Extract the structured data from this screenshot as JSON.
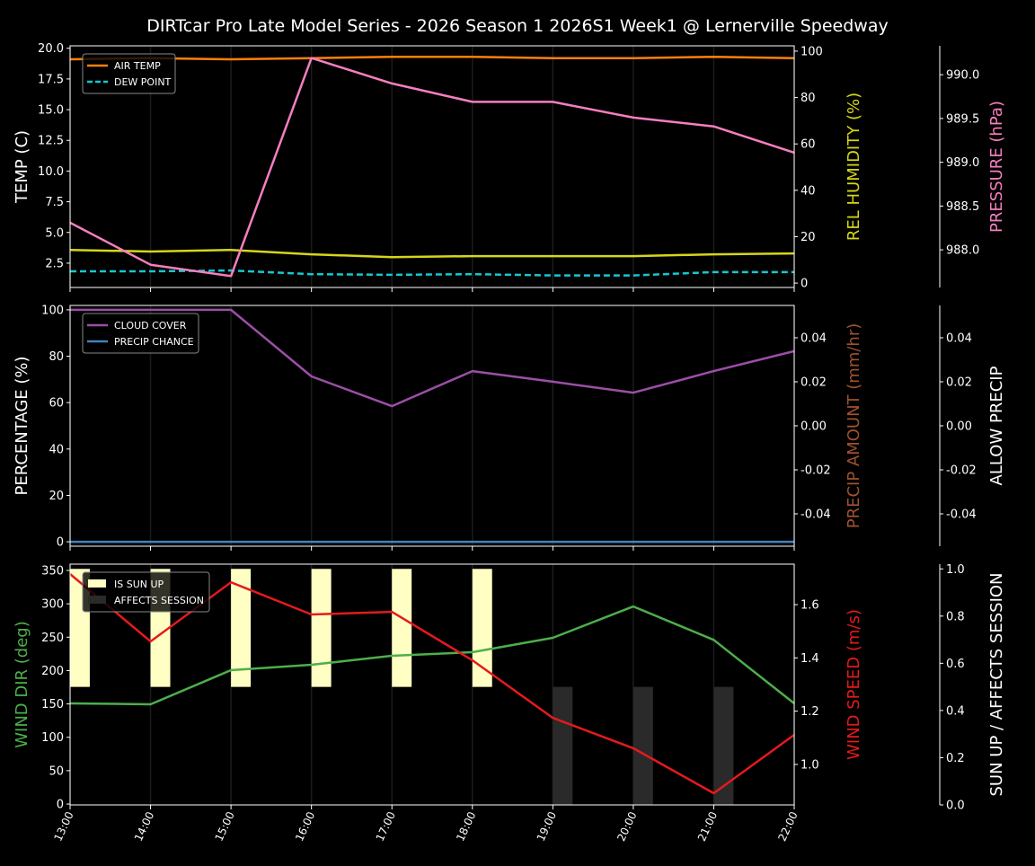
{
  "chart_data": {
    "type": "line",
    "title": "DIRTcar Pro Late Model Series - 2026 Season 1 2026S1 Week1 @ Lernerville Speedway",
    "x": [
      "13:00",
      "14:00",
      "15:00",
      "16:00",
      "17:00",
      "18:00",
      "19:00",
      "20:00",
      "21:00",
      "22:00"
    ],
    "panels": [
      {
        "id": "weather",
        "axes": [
          {
            "side": "left",
            "label": "TEMP (C)",
            "color": "#ffffff",
            "ylim": [
              0.52,
              20.2
            ],
            "ticks": [
              2.5,
              5.0,
              7.5,
              10.0,
              12.5,
              15.0,
              17.5,
              20.0
            ],
            "fmt": 1
          },
          {
            "side": "right1",
            "label": "REL HUMIDITY (%)",
            "color": "#d6d61a",
            "ylim": [
              -1.9,
              102.3
            ],
            "ticks": [
              0,
              20,
              40,
              60,
              80,
              100
            ],
            "fmt": 0
          },
          {
            "side": "right2",
            "label": "PRESSURE (hPa)",
            "color": "#f57fbf",
            "ylim": [
              987.57,
              990.33
            ],
            "ticks": [
              988.0,
              988.5,
              989.0,
              989.5,
              990.0
            ],
            "fmt": 1
          }
        ],
        "series": [
          {
            "name": "AIR TEMP",
            "axis": 0,
            "color": "#ff7f0e",
            "dash": false,
            "legend": true,
            "values": [
              19.1,
              19.2,
              19.1,
              19.2,
              19.3,
              19.3,
              19.2,
              19.2,
              19.3,
              19.2
            ]
          },
          {
            "name": "DEW POINT",
            "axis": 0,
            "color": "#17c8cf",
            "dash": true,
            "legend": true,
            "values": [
              1.84,
              1.84,
              1.9,
              1.6,
              1.55,
              1.6,
              1.5,
              1.5,
              1.77,
              1.77
            ]
          },
          {
            "name": "REL HUMIDITY",
            "axis": 1,
            "color": "#d6d61a",
            "dash": false,
            "legend": false,
            "values": [
              14.3,
              13.6,
              14.3,
              12.4,
              11.2,
              11.6,
              11.6,
              11.6,
              12.4,
              12.8
            ]
          },
          {
            "name": "PRESSURE",
            "axis": 2,
            "color": "#f57fbf",
            "dash": false,
            "legend": false,
            "values": [
              988.31,
              987.83,
              987.7,
              990.19,
              989.9,
              989.69,
              989.69,
              989.51,
              989.41,
              989.11
            ]
          }
        ]
      },
      {
        "id": "precip",
        "axes": [
          {
            "side": "left",
            "label": "PERCENTAGE (%)",
            "color": "#ffffff",
            "ylim": [
              -1.9,
              101.9
            ],
            "ticks": [
              0,
              20,
              40,
              60,
              80,
              100
            ],
            "fmt": 0
          },
          {
            "side": "right1",
            "label": "PRECIP AMOUNT (mm/hr)",
            "color": "#a0522d",
            "ylim": [
              -0.0547,
              0.0547
            ],
            "ticks": [
              -0.04,
              -0.02,
              0.0,
              0.02,
              0.04
            ],
            "fmt": 2
          },
          {
            "side": "right2",
            "label": "ALLOW PRECIP",
            "color": "#ffffff",
            "ylim": [
              -0.0547,
              0.0547
            ],
            "ticks": [
              -0.04,
              -0.02,
              0.0,
              0.02,
              0.04
            ],
            "fmt": 2
          }
        ],
        "series": [
          {
            "name": "CLOUD COVER",
            "axis": 0,
            "color": "#9b4fa6",
            "dash": false,
            "legend": true,
            "values": [
              100,
              100,
              100,
              71.3,
              58.5,
              73.6,
              69,
              64.3,
              73.6,
              82.2
            ]
          },
          {
            "name": "PRECIP CHANCE",
            "axis": 0,
            "color": "#3f84c0",
            "dash": false,
            "legend": true,
            "values": [
              0,
              0,
              0,
              0,
              0,
              0,
              0,
              0,
              0,
              0
            ]
          }
        ]
      },
      {
        "id": "wind",
        "axes": [
          {
            "side": "left",
            "label": "WIND DIR (deg)",
            "color": "#4daf4a",
            "ylim": [
              -1.3,
              359.4
            ],
            "ticks": [
              0,
              50,
              100,
              150,
              200,
              250,
              300,
              350
            ],
            "fmt": 0
          },
          {
            "side": "right1",
            "label": "WIND SPEED (m/s)",
            "color": "#e41a1c",
            "ylim": [
              0.848,
              1.752
            ],
            "ticks": [
              1.0,
              1.2,
              1.4,
              1.6
            ],
            "fmt": 1
          },
          {
            "side": "right2",
            "label": "SUN UP / AFFECTS SESSION",
            "color": "#ffffff",
            "ylim": [
              0,
              1.02
            ],
            "ticks": [
              0.0,
              0.2,
              0.4,
              0.6,
              0.8,
              1.0
            ],
            "fmt": 1
          }
        ],
        "bars": [
          {
            "name": "IS SUN UP",
            "color": "#ffffc4",
            "values": [
              1,
              1,
              1,
              1,
              1,
              1,
              0,
              0,
              0,
              0
            ]
          },
          {
            "name": "AFFECTS SESSION",
            "color": "#2a2a2a",
            "values": [
              0,
              0,
              0,
              0,
              0,
              0,
              1,
              1,
              1,
              0
            ]
          }
        ],
        "series": [
          {
            "name": "WIND DIR",
            "axis": 0,
            "color": "#4daf4a",
            "dash": false,
            "legend": false,
            "values": [
              150.8,
              149.4,
              200.6,
              208.6,
              222.1,
              227.5,
              249,
              296,
              246,
              150.8
            ]
          },
          {
            "name": "WIND SPEED",
            "axis": 1,
            "color": "#e41a1c",
            "dash": false,
            "legend": false,
            "values": [
              1.715,
              1.462,
              1.684,
              1.563,
              1.573,
              1.391,
              1.175,
              1.061,
              0.892,
              1.111
            ]
          }
        ]
      }
    ]
  }
}
